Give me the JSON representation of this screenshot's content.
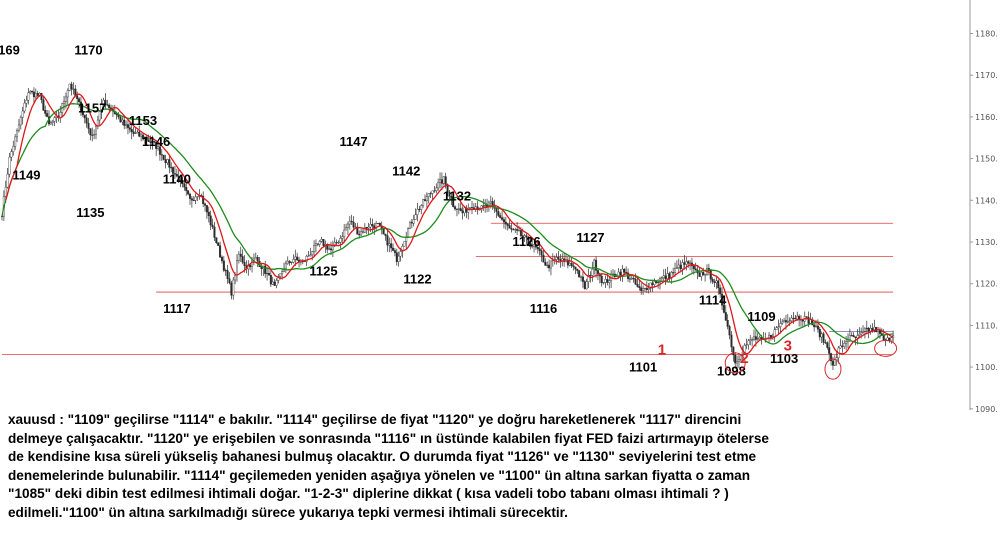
{
  "chart_data": {
    "type": "candlestick",
    "instrument": "xauusd",
    "y_axis": {
      "position": "right",
      "ticks": [
        1180,
        1170,
        1160,
        1150,
        1140,
        1130,
        1120,
        1110,
        1100,
        1090
      ],
      "range": [
        1085,
        1183
      ]
    },
    "price_anchors": [
      [
        0,
        1137
      ],
      [
        4,
        1150
      ],
      [
        9,
        1158
      ],
      [
        14,
        1166
      ],
      [
        20,
        1165
      ],
      [
        25,
        1158
      ],
      [
        30,
        1160
      ],
      [
        36,
        1168
      ],
      [
        42,
        1162
      ],
      [
        48,
        1155
      ],
      [
        54,
        1164
      ],
      [
        60,
        1161
      ],
      [
        65,
        1158
      ],
      [
        70,
        1156
      ],
      [
        76,
        1155
      ],
      [
        82,
        1153
      ],
      [
        88,
        1149
      ],
      [
        94,
        1145
      ],
      [
        100,
        1140
      ],
      [
        105,
        1142
      ],
      [
        110,
        1136
      ],
      [
        114,
        1130
      ],
      [
        118,
        1124
      ],
      [
        122,
        1118
      ],
      [
        126,
        1127
      ],
      [
        130,
        1124
      ],
      [
        135,
        1126
      ],
      [
        140,
        1123
      ],
      [
        145,
        1119
      ],
      [
        150,
        1124
      ],
      [
        155,
        1126
      ],
      [
        160,
        1125
      ],
      [
        165,
        1128
      ],
      [
        170,
        1130
      ],
      [
        175,
        1128
      ],
      [
        180,
        1131
      ],
      [
        185,
        1135
      ],
      [
        190,
        1132
      ],
      [
        195,
        1134
      ],
      [
        200,
        1134
      ],
      [
        205,
        1130
      ],
      [
        210,
        1126
      ],
      [
        215,
        1132
      ],
      [
        220,
        1137
      ],
      [
        225,
        1140
      ],
      [
        230,
        1143
      ],
      [
        235,
        1145
      ],
      [
        240,
        1139
      ],
      [
        245,
        1137
      ],
      [
        250,
        1139
      ],
      [
        255,
        1138
      ],
      [
        260,
        1139
      ],
      [
        265,
        1136
      ],
      [
        270,
        1133
      ],
      [
        275,
        1132
      ],
      [
        280,
        1130
      ],
      [
        285,
        1128
      ],
      [
        290,
        1124
      ],
      [
        295,
        1126
      ],
      [
        300,
        1125
      ],
      [
        305,
        1124
      ],
      [
        310,
        1119
      ],
      [
        315,
        1125
      ],
      [
        320,
        1120
      ],
      [
        325,
        1122
      ],
      [
        330,
        1123
      ],
      [
        335,
        1121
      ],
      [
        340,
        1118
      ],
      [
        345,
        1120
      ],
      [
        350,
        1121
      ],
      [
        355,
        1122
      ],
      [
        360,
        1124
      ],
      [
        365,
        1125
      ],
      [
        370,
        1122
      ],
      [
        375,
        1123
      ],
      [
        380,
        1120
      ],
      [
        385,
        1112
      ],
      [
        390,
        1101
      ],
      [
        395,
        1105
      ],
      [
        400,
        1107
      ],
      [
        405,
        1106
      ],
      [
        410,
        1108
      ],
      [
        415,
        1111
      ],
      [
        420,
        1112
      ],
      [
        425,
        1112
      ],
      [
        430,
        1111
      ],
      [
        435,
        1108
      ],
      [
        440,
        1104
      ],
      [
        442,
        1100
      ],
      [
        445,
        1104
      ],
      [
        450,
        1107
      ],
      [
        455,
        1107
      ],
      [
        460,
        1109
      ],
      [
        465,
        1109
      ],
      [
        470,
        1106
      ],
      [
        474,
        1108
      ]
    ],
    "overlays": {
      "ma_fast": {
        "color": "#e01818",
        "period": 9
      },
      "ma_slow": {
        "color": "#1e8c1e",
        "period": 24
      }
    },
    "levels": [
      {
        "value": 1134.5,
        "color": "#e04040",
        "from": 260,
        "to": 474
      },
      {
        "value": 1126.5,
        "color": "#e04040",
        "from": 252,
        "to": 474
      },
      {
        "value": 1118,
        "color": "#e04040",
        "from": 82,
        "to": 474
      },
      {
        "value": 1108.5,
        "color": "#6a6ab0",
        "from": 440,
        "to": 474
      },
      {
        "value": 1103,
        "color": "#e04040",
        "from": 0,
        "to": 474
      }
    ],
    "annotations": [
      {
        "text": "1169",
        "i": 2,
        "price": 1175
      },
      {
        "text": "1170",
        "i": 46,
        "price": 1175
      },
      {
        "text": "1157",
        "i": 48,
        "price": 1161
      },
      {
        "text": "1153",
        "i": 75,
        "price": 1158
      },
      {
        "text": "1146",
        "i": 82,
        "price": 1153
      },
      {
        "text": "1149",
        "i": 13,
        "price": 1145
      },
      {
        "text": "1140",
        "i": 93,
        "price": 1144
      },
      {
        "text": "1135",
        "i": 47,
        "price": 1136
      },
      {
        "text": "1147",
        "i": 187,
        "price": 1153
      },
      {
        "text": "1142",
        "i": 215,
        "price": 1146
      },
      {
        "text": "1132",
        "i": 242,
        "price": 1140
      },
      {
        "text": "1126",
        "i": 279,
        "price": 1129
      },
      {
        "text": "1127",
        "i": 313,
        "price": 1130
      },
      {
        "text": "1125",
        "i": 171,
        "price": 1122
      },
      {
        "text": "1122",
        "i": 221,
        "price": 1120
      },
      {
        "text": "1117",
        "i": 93,
        "price": 1113
      },
      {
        "text": "1116",
        "i": 288,
        "price": 1113
      },
      {
        "text": "1114",
        "i": 378,
        "price": 1115
      },
      {
        "text": "1109",
        "i": 404,
        "price": 1111
      },
      {
        "text": "1101",
        "i": 341,
        "price": 1099
      },
      {
        "text": "1098",
        "i": 388,
        "price": 1098
      },
      {
        "text": "1103",
        "i": 416,
        "price": 1101
      }
    ],
    "markers": [
      {
        "label": "1",
        "i": 351,
        "price": 1103
      },
      {
        "label": "2",
        "i": 395,
        "price": 1101
      },
      {
        "label": "3",
        "i": 418,
        "price": 1104
      }
    ]
  },
  "commentary": {
    "line1": "xauusd : \"1109\" geçilirse \"1114\" e bakılır. \"1114\" geçilirse de fiyat \"1120\" ye doğru hareketlenerek \"1117\" direncini",
    "line2": "delmeye çalışacaktır. \"1120\" ye erişebilen ve sonrasında \"1116\" ın üstünde kalabilen fiyat FED faizi artırmayıp ötelerse",
    "line3": "de kendisine kısa süreli yükseliş bahanesi bulmuş olacaktır. O durumda fiyat \"1126\" ve \"1130\" seviyelerini test etme",
    "line4": "denemelerinde bulunabilir. \"1114\" geçilemeden yeniden aşağıya yönelen ve \"1100\" ün altına sarkan fiyatta o zaman",
    "line5": "\"1085\" deki dibin test edilmesi ihtimali doğar. \"1-2-3\" diplerine dikkat ( kısa vadeli tobo tabanı olması ihtimali ? )",
    "line6": "edilmeli.\"1100\" ün altına sarkılmadığı sürece yukarıya tepki vermesi ihtimali sürecektir."
  }
}
